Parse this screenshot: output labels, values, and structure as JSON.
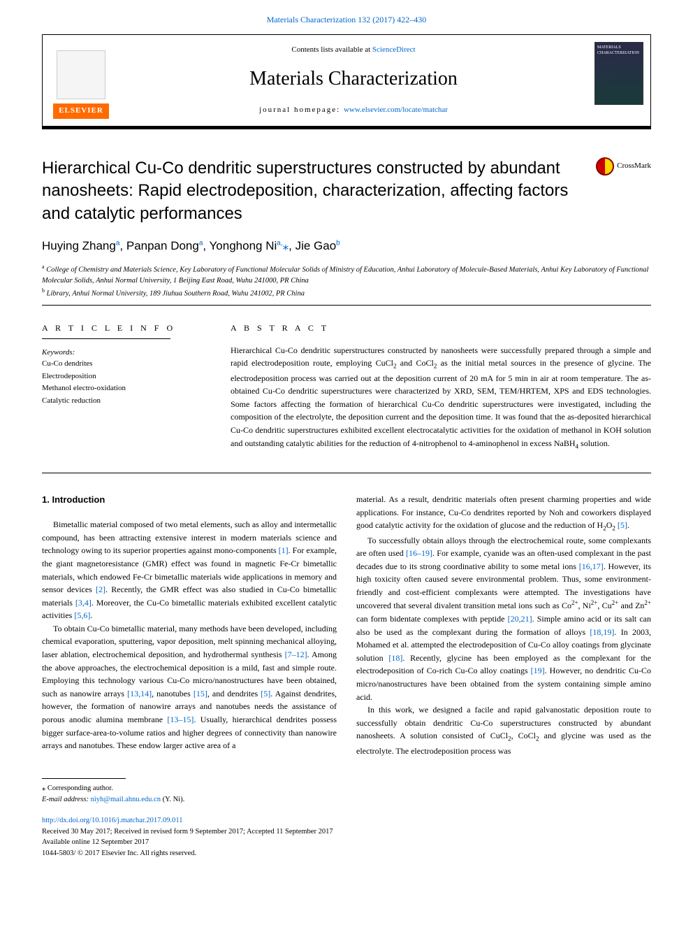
{
  "top_link": {
    "journal_issue": "Materials Characterization 132 (2017) 422–430"
  },
  "header": {
    "contents_prefix": "Contents lists available at ",
    "contents_link": "ScienceDirect",
    "journal_name": "Materials Characterization",
    "homepage_prefix": "journal homepage: ",
    "homepage_url": "www.elsevier.com/locate/matchar",
    "publisher": "ELSEVIER",
    "cover_label": "MATERIALS CHARACTERIZATION"
  },
  "crossmark_label": "CrossMark",
  "title": "Hierarchical Cu-Co dendritic superstructures constructed by abundant nanosheets: Rapid electrodeposition, characterization, affecting factors and catalytic performances",
  "authors_html": "Huying Zhang<sup class='sup'>a</sup>, Panpan Dong<sup class='sup'>a</sup>, Yonghong Ni<sup class='sup'>a,</sup><span class='star'>⁎</span>, Jie Gao<sup class='sup'>b</sup>",
  "affiliations": {
    "a": "College of Chemistry and Materials Science, Key Laboratory of Functional Molecular Solids of Ministry of Education, Anhui Laboratory of Molecule-Based Materials, Anhui Key Laboratory of Functional Molecular Solids, Anhui Normal University, 1 Beijing East Road, Wuhu 241000, PR China",
    "b": "Library, Anhui Normal University, 189 Jiuhua Southern Road, Wuhu 241002, PR China"
  },
  "article_info": {
    "heading": "A R T I C L E  I N F O",
    "kw_label": "Keywords:",
    "keywords": [
      "Cu-Co dendrites",
      "Electrodeposition",
      "Methanol electro-oxidation",
      "Catalytic reduction"
    ]
  },
  "abstract": {
    "heading": "A B S T R A C T",
    "text_html": "Hierarchical Cu-Co dendritic superstructures constructed by nanosheets were successfully prepared through a simple and rapid electrodeposition route, employing CuCl<sub>2</sub> and CoCl<sub>2</sub> as the initial metal sources in the presence of glycine. The electrodeposition process was carried out at the deposition current of 20 mA for 5 min in air at room temperature. The as-obtained Cu-Co dendritic superstructures were characterized by XRD, SEM, TEM/HRTEM, XPS and EDS technologies. Some factors affecting the formation of hierarchical Cu-Co dendritic superstructures were investigated, including the composition of the electrolyte, the deposition current and the deposition time. It was found that the as-deposited hierarchical Cu-Co dendritic superstructures exhibited excellent electrocatalytic activities for the oxidation of methanol in KOH solution and outstanding catalytic abilities for the reduction of 4-nitrophenol to 4-aminophenol in excess NaBH<sub>4</sub> solution."
  },
  "intro": {
    "heading": "1. Introduction",
    "p1_html": "Bimetallic material composed of two metal elements, such as alloy and intermetallic compound, has been attracting extensive interest in modern materials science and technology owing to its superior properties against mono-components <span class='ref'>[1]</span>. For example, the giant magnetoresistance (GMR) effect was found in magnetic Fe-Cr bimetallic materials, which endowed Fe-Cr bimetallic materials wide applications in memory and sensor devices <span class='ref'>[2]</span>. Recently, the GMR effect was also studied in Cu-Co bimetallic materials <span class='ref'>[3,4]</span>. Moreover, the Cu-Co bimetallic materials exhibited excellent catalytic activities <span class='ref'>[5,6]</span>.",
    "p2_html": "To obtain Cu-Co bimetallic material, many methods have been developed, including chemical evaporation, sputtering, vapor deposition, melt spinning mechanical alloying, laser ablation, electrochemical deposition, and hydrothermal synthesis <span class='ref'>[7–12]</span>. Among the above approaches, the electrochemical deposition is a mild, fast and simple route. Employing this technology various Cu-Co micro/nanostructures have been obtained, such as nanowire arrays <span class='ref'>[13,14]</span>, nanotubes <span class='ref'>[15]</span>, and dendrites <span class='ref'>[5]</span>. Against dendrites, however, the formation of nanowire arrays and nanotubes needs the assistance of porous anodic alumina membrane <span class='ref'>[13–15]</span>. Usually, hierarchical dendrites possess bigger surface-area-to-volume ratios and higher degrees of connectivity than nanowire arrays and nanotubes. These endow larger active area of a",
    "p3_html": "material. As a result, dendritic materials often present charming properties and wide applications. For instance, Cu-Co dendrites reported by Noh and coworkers displayed good catalytic activity for the oxidation of glucose and the reduction of H<sub>2</sub>O<sub>2</sub> <span class='ref'>[5]</span>.",
    "p4_html": "To successfully obtain alloys through the electrochemical route, some complexants are often used <span class='ref'>[16–19]</span>. For example, cyanide was an often-used complexant in the past decades due to its strong coordinative ability to some metal ions <span class='ref'>[16,17]</span>. However, its high toxicity often caused severe environmental problem. Thus, some environment-friendly and cost-efficient complexants were attempted. The investigations have uncovered that several divalent transition metal ions such as Co<sup>2+</sup>, Ni<sup>2+</sup>, Cu<sup>2+</sup> and Zn<sup>2+</sup> can form bidentate complexes with peptide <span class='ref'>[20,21]</span>. Simple amino acid or its salt can also be used as the complexant during the formation of alloys <span class='ref'>[18,19]</span>. In 2003, Mohamed et al. attempted the electrodeposition of Cu-Co alloy coatings from glycinate solution <span class='ref'>[18]</span>. Recently, glycine has been employed as the complexant for the electrodeposition of Co-rich Cu-Co alloy coatings <span class='ref'>[19]</span>. However, no dendritic Cu-Co micro/nanostructures have been obtained from the system containing simple amino acid.",
    "p5_html": "In this work, we designed a facile and rapid galvanostatic deposition route to successfully obtain dendritic Cu-Co superstructures constructed by abundant nanosheets. A solution consisted of CuCl<sub>2</sub>, CoCl<sub>2</sub> and glycine was used as the electrolyte. The electrodeposition process was"
  },
  "footer": {
    "corr": "⁎ Corresponding author.",
    "email_label": "E-mail address: ",
    "email": "niyh@mail.ahnu.edu.cn",
    "email_name": " (Y. Ni).",
    "doi": "http://dx.doi.org/10.1016/j.matchar.2017.09.011",
    "received": "Received 30 May 2017; Received in revised form 9 September 2017; Accepted 11 September 2017",
    "online": "Available online 12 September 2017",
    "copyright": "1044-5803/ © 2017 Elsevier Inc. All rights reserved."
  },
  "colors": {
    "link": "#0066cc",
    "elsevier_orange": "#ff6b00",
    "crossmark_red": "#c00",
    "crossmark_yellow": "#ffd700"
  }
}
